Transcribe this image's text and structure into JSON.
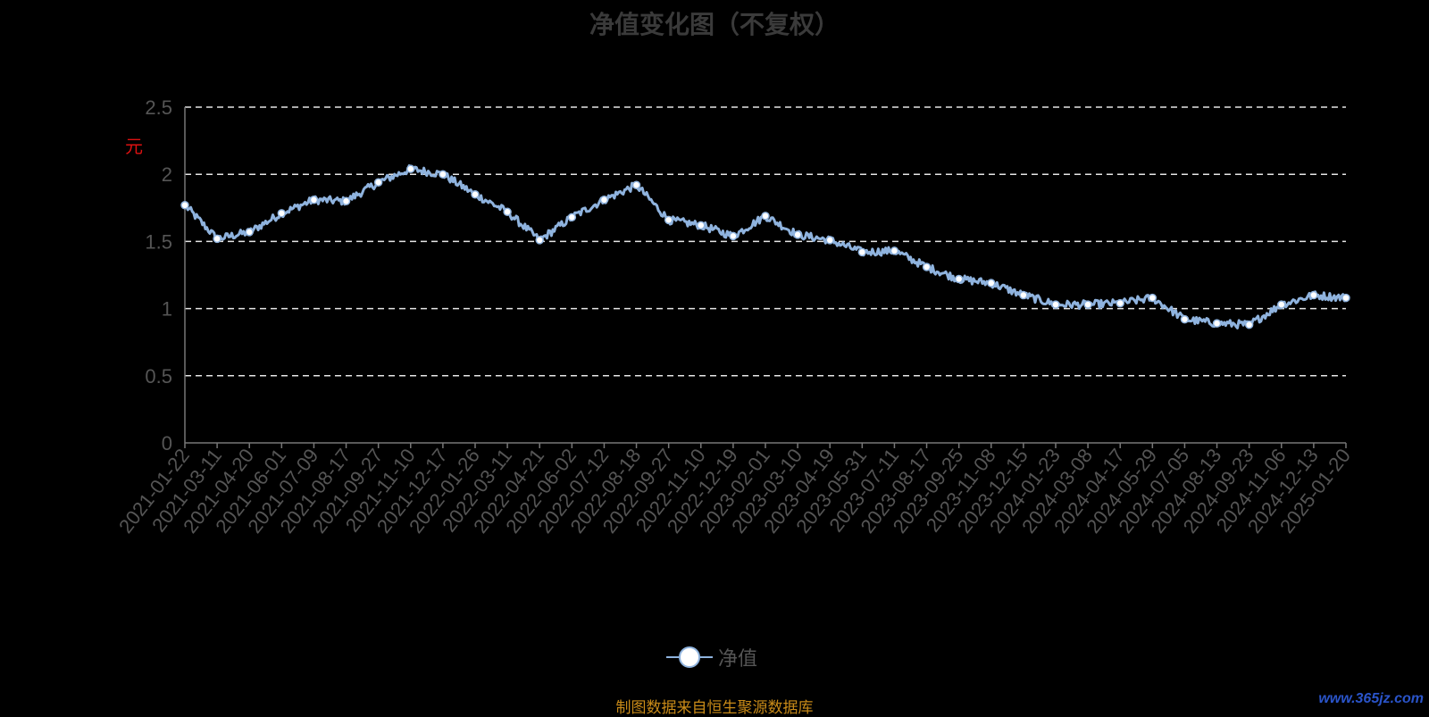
{
  "chart_data": {
    "type": "line",
    "title": "净值变化图（不复权）",
    "ylabel": "元",
    "ylim": [
      0,
      2.5
    ],
    "yticks": [
      "0",
      "0.5",
      "1",
      "1.5",
      "2",
      "2.5"
    ],
    "grid": true,
    "legend_position": "bottom-center",
    "line_color": "#8fb3de",
    "x_tick_labels": [
      "2021-01-22",
      "2021-03-11",
      "2021-04-20",
      "2021-06-01",
      "2021-07-09",
      "2021-08-17",
      "2021-09-27",
      "2021-11-10",
      "2021-12-17",
      "2022-01-26",
      "2022-03-11",
      "2022-04-21",
      "2022-06-02",
      "2022-07-12",
      "2022-08-18",
      "2022-09-27",
      "2022-11-10",
      "2022-12-19",
      "2023-02-01",
      "2023-03-10",
      "2023-04-19",
      "2023-05-31",
      "2023-07-11",
      "2023-08-17",
      "2023-09-25",
      "2023-11-08",
      "2023-12-15",
      "2024-01-23",
      "2024-03-08",
      "2024-04-17",
      "2024-05-29",
      "2024-07-05",
      "2024-08-13",
      "2024-09-23",
      "2024-11-06",
      "2024-12-13",
      "2025-01-20"
    ],
    "series": [
      {
        "name": "净值",
        "x": [
          "2021-01-22",
          "2021-03-11",
          "2021-04-20",
          "2021-06-01",
          "2021-07-09",
          "2021-08-17",
          "2021-09-27",
          "2021-11-10",
          "2021-12-17",
          "2022-01-26",
          "2022-03-11",
          "2022-04-21",
          "2022-06-02",
          "2022-07-12",
          "2022-08-18",
          "2022-09-27",
          "2022-11-10",
          "2022-12-19",
          "2023-02-01",
          "2023-03-10",
          "2023-04-19",
          "2023-05-31",
          "2023-07-11",
          "2023-08-17",
          "2023-09-25",
          "2023-11-08",
          "2023-12-15",
          "2024-01-23",
          "2024-03-08",
          "2024-04-17",
          "2024-05-29",
          "2024-07-05",
          "2024-08-13",
          "2024-09-23",
          "2024-11-06",
          "2024-12-13",
          "2025-01-20"
        ],
        "values": [
          1.77,
          1.52,
          1.57,
          1.71,
          1.81,
          1.8,
          1.94,
          2.04,
          2.0,
          1.85,
          1.72,
          1.51,
          1.68,
          1.81,
          1.92,
          1.66,
          1.62,
          1.54,
          1.69,
          1.55,
          1.51,
          1.42,
          1.43,
          1.31,
          1.22,
          1.19,
          1.1,
          1.03,
          1.03,
          1.04,
          1.08,
          0.92,
          0.89,
          0.88,
          1.03,
          1.1,
          1.08
        ]
      }
    ]
  },
  "source_note": "制图数据来自恒生聚源数据库",
  "watermark": "www.365jz.com"
}
